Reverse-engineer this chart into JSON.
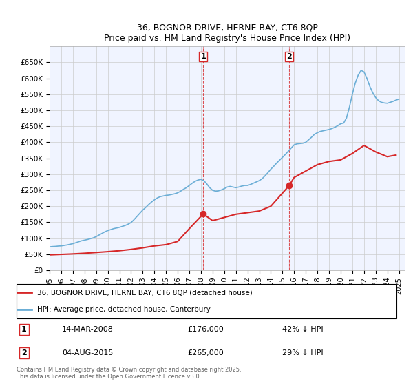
{
  "title": "36, BOGNOR DRIVE, HERNE BAY, CT6 8QP",
  "subtitle": "Price paid vs. HM Land Registry's House Price Index (HPI)",
  "ylabel_prefix": "£",
  "ylim": [
    0,
    700000
  ],
  "yticks": [
    0,
    50000,
    100000,
    150000,
    200000,
    250000,
    300000,
    350000,
    400000,
    450000,
    500000,
    550000,
    600000,
    650000
  ],
  "ytick_labels": [
    "£0",
    "£50K",
    "£100K",
    "£150K",
    "£200K",
    "£250K",
    "£300K",
    "£350K",
    "£400K",
    "£450K",
    "£500K",
    "£550K",
    "£600K",
    "£650K"
  ],
  "xlim_start": 1995.0,
  "xlim_end": 2025.5,
  "xticks": [
    1995,
    1996,
    1997,
    1998,
    1999,
    2000,
    2001,
    2002,
    2003,
    2004,
    2005,
    2006,
    2007,
    2008,
    2009,
    2010,
    2011,
    2012,
    2013,
    2014,
    2015,
    2016,
    2017,
    2018,
    2019,
    2020,
    2021,
    2022,
    2023,
    2024,
    2025
  ],
  "sale1_x": 2008.2,
  "sale1_y": 176000,
  "sale1_label": "1",
  "sale1_date": "14-MAR-2008",
  "sale1_price": "£176,000",
  "sale1_hpi": "42% ↓ HPI",
  "sale2_x": 2015.58,
  "sale2_y": 265000,
  "sale2_label": "2",
  "sale2_date": "04-AUG-2015",
  "sale2_price": "£265,000",
  "sale2_hpi": "29% ↓ HPI",
  "hpi_color": "#6baed6",
  "sale_color": "#d62728",
  "vline_color": "#d62728",
  "grid_color": "#cccccc",
  "legend_label_sale": "36, BOGNOR DRIVE, HERNE BAY, CT6 8QP (detached house)",
  "legend_label_hpi": "HPI: Average price, detached house, Canterbury",
  "footer": "Contains HM Land Registry data © Crown copyright and database right 2025.\nThis data is licensed under the Open Government Licence v3.0.",
  "hpi_data_x": [
    1995.0,
    1995.25,
    1995.5,
    1995.75,
    1996.0,
    1996.25,
    1996.5,
    1996.75,
    1997.0,
    1997.25,
    1997.5,
    1997.75,
    1998.0,
    1998.25,
    1998.5,
    1998.75,
    1999.0,
    1999.25,
    1999.5,
    1999.75,
    2000.0,
    2000.25,
    2000.5,
    2000.75,
    2001.0,
    2001.25,
    2001.5,
    2001.75,
    2002.0,
    2002.25,
    2002.5,
    2002.75,
    2003.0,
    2003.25,
    2003.5,
    2003.75,
    2004.0,
    2004.25,
    2004.5,
    2004.75,
    2005.0,
    2005.25,
    2005.5,
    2005.75,
    2006.0,
    2006.25,
    2006.5,
    2006.75,
    2007.0,
    2007.25,
    2007.5,
    2007.75,
    2008.0,
    2008.25,
    2008.5,
    2008.75,
    2009.0,
    2009.25,
    2009.5,
    2009.75,
    2010.0,
    2010.25,
    2010.5,
    2010.75,
    2011.0,
    2011.25,
    2011.5,
    2011.75,
    2012.0,
    2012.25,
    2012.5,
    2012.75,
    2013.0,
    2013.25,
    2013.5,
    2013.75,
    2014.0,
    2014.25,
    2014.5,
    2014.75,
    2015.0,
    2015.25,
    2015.5,
    2015.75,
    2016.0,
    2016.25,
    2016.5,
    2016.75,
    2017.0,
    2017.25,
    2017.5,
    2017.75,
    2018.0,
    2018.25,
    2018.5,
    2018.75,
    2019.0,
    2019.25,
    2019.5,
    2019.75,
    2020.0,
    2020.25,
    2020.5,
    2020.75,
    2021.0,
    2021.25,
    2021.5,
    2021.75,
    2022.0,
    2022.25,
    2022.5,
    2022.75,
    2023.0,
    2023.25,
    2023.5,
    2023.75,
    2024.0,
    2024.25,
    2024.5,
    2024.75,
    2025.0
  ],
  "hpi_data_y": [
    73000,
    74000,
    74500,
    75500,
    76000,
    77500,
    79000,
    81000,
    83000,
    86000,
    89000,
    92000,
    94000,
    96000,
    98500,
    101000,
    105000,
    110000,
    115000,
    120000,
    124000,
    127000,
    130000,
    132000,
    134000,
    137000,
    140000,
    144000,
    149000,
    158000,
    168000,
    178000,
    188000,
    196000,
    205000,
    213000,
    220000,
    226000,
    230000,
    232000,
    234000,
    235000,
    237000,
    239000,
    242000,
    247000,
    253000,
    258000,
    265000,
    272000,
    278000,
    282000,
    284000,
    280000,
    270000,
    258000,
    250000,
    247000,
    248000,
    251000,
    255000,
    260000,
    262000,
    260000,
    258000,
    260000,
    263000,
    265000,
    265000,
    268000,
    272000,
    276000,
    280000,
    286000,
    295000,
    305000,
    316000,
    325000,
    335000,
    344000,
    353000,
    362000,
    372000,
    382000,
    392000,
    395000,
    396000,
    397000,
    400000,
    408000,
    416000,
    425000,
    430000,
    434000,
    436000,
    438000,
    440000,
    443000,
    447000,
    452000,
    458000,
    460000,
    476000,
    510000,
    550000,
    585000,
    610000,
    625000,
    620000,
    600000,
    575000,
    555000,
    540000,
    530000,
    525000,
    523000,
    522000,
    525000,
    528000,
    532000,
    535000
  ],
  "sale_data_x": [
    1995.0,
    1996.0,
    1997.0,
    1998.0,
    1999.0,
    2000.0,
    2001.0,
    2002.0,
    2003.0,
    2004.0,
    2005.0,
    2006.0,
    2007.0,
    2008.2,
    2009.0,
    2010.0,
    2011.0,
    2012.0,
    2013.0,
    2014.0,
    2015.58,
    2016.0,
    2017.0,
    2018.0,
    2019.0,
    2020.0,
    2021.0,
    2022.0,
    2023.0,
    2024.0,
    2024.75
  ],
  "sale_data_y": [
    48000,
    49500,
    51000,
    53000,
    55500,
    58000,
    61000,
    65000,
    70000,
    76000,
    80000,
    90000,
    130000,
    176000,
    155000,
    165000,
    175000,
    180000,
    185000,
    200000,
    265000,
    290000,
    310000,
    330000,
    340000,
    345000,
    365000,
    390000,
    370000,
    355000,
    360000
  ]
}
